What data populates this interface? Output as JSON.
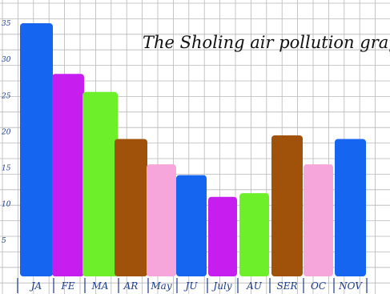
{
  "chart_data": {
    "type": "bar",
    "title": "The Sholing air pollution graph",
    "categories": [
      "JA",
      "FE",
      "MA",
      "AR",
      "May",
      "JU",
      "July",
      "AU",
      "SER",
      "OC",
      "NOV"
    ],
    "values": [
      35,
      28,
      25.5,
      19,
      15.5,
      14,
      11,
      11.5,
      19.5,
      15.5,
      19
    ],
    "colors": [
      "#1565f0",
      "#c71ef0",
      "#6df02a",
      "#a0520a",
      "#f7a6dc",
      "#1565f0",
      "#c71ef0",
      "#6df02a",
      "#a0520a",
      "#f7a6dc",
      "#1565f0"
    ],
    "y_ticks": [
      "5",
      "10",
      "15",
      "20",
      "25",
      "30",
      "35"
    ],
    "ylim": [
      0,
      36
    ],
    "grid": true
  }
}
